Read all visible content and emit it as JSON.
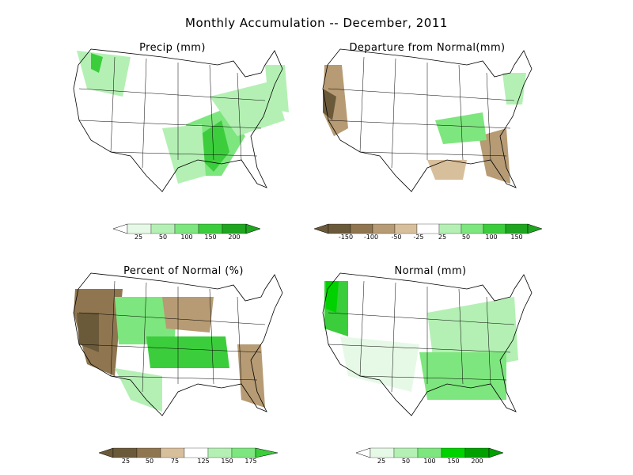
{
  "title": "Monthly Accumulation -- December, 2011",
  "colors": {
    "green_ramp": [
      "#ffffff",
      "#e6f9e6",
      "#b4f0b4",
      "#7ee67e",
      "#3ccd3c",
      "#1fa51f"
    ],
    "normal_ramp": [
      "#ffffff",
      "#e6f9e6",
      "#b4f0b4",
      "#7ee67e",
      "#00d200",
      "#00a000"
    ],
    "brown_ramp": [
      "#6b5a3a",
      "#8f7650",
      "#b69b74",
      "#d8bf9c"
    ],
    "outline": "#000000"
  },
  "panels": [
    {
      "id": "precip",
      "title": "Precip (mm)",
      "legend": {
        "ticks": [
          "25",
          "50",
          "100",
          "150",
          "200"
        ],
        "scheme": "green"
      }
    },
    {
      "id": "departure",
      "title": "Departure from Normal(mm)",
      "legend": {
        "ticks": [
          "-150",
          "-100",
          "-50",
          "-25",
          "25",
          "50",
          "100",
          "150"
        ],
        "scheme": "diverging"
      }
    },
    {
      "id": "percent",
      "title": "Percent of Normal (%)",
      "legend": {
        "ticks": [
          "25",
          "50",
          "75",
          "125",
          "150",
          "175"
        ],
        "scheme": "diverging-pct"
      }
    },
    {
      "id": "normal",
      "title": "Normal (mm)",
      "legend": {
        "ticks": [
          "25",
          "50",
          "100",
          "150",
          "200"
        ],
        "scheme": "normal"
      }
    }
  ]
}
